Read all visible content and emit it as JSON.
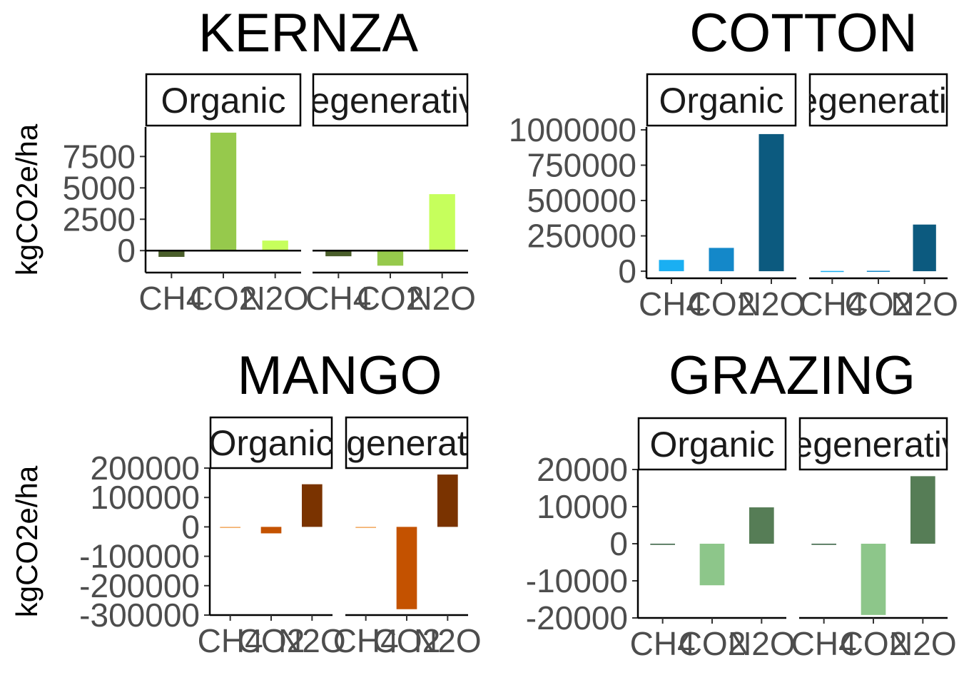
{
  "y_axis_label": "kgCO2e/ha",
  "colors": {
    "text": "#000000",
    "tick": "#4d4d4d",
    "axis": "#000000"
  },
  "chart_data": [
    {
      "type": "bar",
      "title": "KERNZA",
      "ylabel": "kgCO2e/ha",
      "facets": [
        "Organic",
        "Regenerative"
      ],
      "categories": [
        "CH4",
        "CO2",
        "N2O"
      ],
      "category_colors": [
        "#4a5e2a",
        "#96c94c",
        "#c6ff5c"
      ],
      "series": [
        {
          "name": "Organic",
          "values": [
            -500,
            9400,
            800
          ]
        },
        {
          "name": "Regenerative",
          "values": [
            -450,
            -1200,
            4500
          ]
        }
      ],
      "yticks": [
        0,
        2500,
        5000,
        7500
      ],
      "ylim": [
        -1750,
        9850
      ],
      "zero_line": true
    },
    {
      "type": "bar",
      "title": "COTTON",
      "ylabel": "",
      "facets": [
        "Organic",
        "Regenerative"
      ],
      "categories": [
        "CH4",
        "CO2",
        "N2O"
      ],
      "category_colors": [
        "#1aaff2",
        "#1488c9",
        "#0c5a7f"
      ],
      "series": [
        {
          "name": "Organic",
          "values": [
            80000,
            165000,
            970000
          ]
        },
        {
          "name": "Regenerative",
          "values": [
            2000,
            3000,
            330000
          ]
        }
      ],
      "yticks": [
        0,
        250000,
        500000,
        750000,
        1000000
      ],
      "ylim": [
        -50000,
        1020000
      ],
      "zero_line": false
    },
    {
      "type": "bar",
      "title": "MANGO",
      "ylabel": "kgCO2e/ha",
      "facets": [
        "Organic",
        "Regenerative"
      ],
      "categories": [
        "CH4",
        "CO2",
        "N2O"
      ],
      "category_colors": [
        "#f2a65a",
        "#c45200",
        "#7a3300"
      ],
      "series": [
        {
          "name": "Organic",
          "values": [
            -1000,
            -22000,
            145000
          ]
        },
        {
          "name": "Regenerative",
          "values": [
            -1000,
            -280000,
            178000
          ]
        }
      ],
      "yticks": [
        -300000,
        -200000,
        -100000,
        0,
        100000,
        200000
      ],
      "ylim": [
        -300000,
        200000
      ],
      "zero_line": false
    },
    {
      "type": "bar",
      "title": "GRAZING",
      "ylabel": "",
      "facets": [
        "Organic",
        "Regenerative"
      ],
      "categories": [
        "CH4",
        "CO2",
        "N2O"
      ],
      "category_colors": [
        "#2f5a3a",
        "#8dc68a",
        "#567d56"
      ],
      "series": [
        {
          "name": "Organic",
          "values": [
            -150,
            -11200,
            9800
          ]
        },
        {
          "name": "Regenerative",
          "values": [
            -150,
            -19200,
            18200
          ]
        }
      ],
      "yticks": [
        -20000,
        -10000,
        0,
        10000,
        20000
      ],
      "ylim": [
        -20000,
        20000
      ],
      "zero_line": false
    }
  ]
}
